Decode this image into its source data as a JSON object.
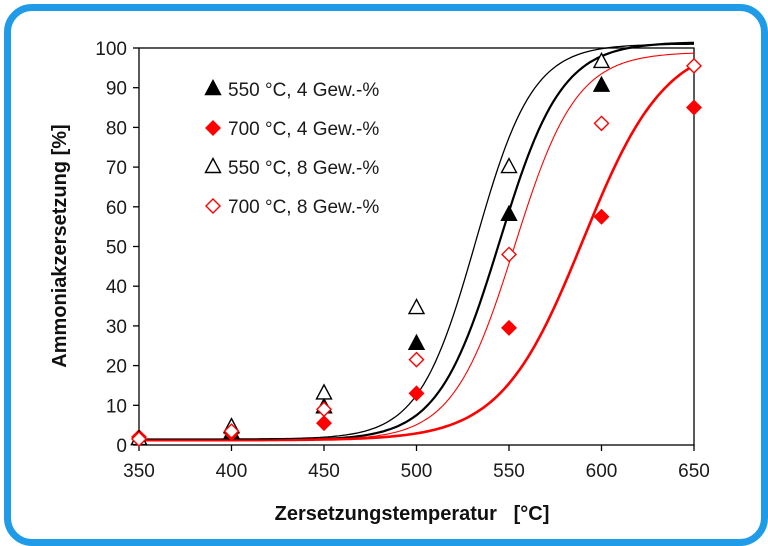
{
  "chart_data": {
    "type": "scatter",
    "xlabel": "Zersetzungstemperatur   [°C]",
    "ylabel": "Ammoniakzersetzung [%]",
    "xlim": [
      350,
      650
    ],
    "ylim": [
      0,
      100
    ],
    "xticks": [
      350,
      400,
      450,
      500,
      550,
      600,
      650
    ],
    "yticks": [
      0,
      10,
      20,
      30,
      40,
      50,
      60,
      70,
      80,
      90,
      100
    ],
    "grid": false,
    "legend_position": "top-left",
    "series": [
      {
        "name": "550 °C, 4 Gew.-%",
        "marker": "triangle-filled",
        "color": "#000000",
        "x": [
          350,
          400,
          450,
          500,
          550,
          600
        ],
        "y": [
          1.5,
          3,
          9.5,
          25.5,
          58,
          90.5
        ],
        "fit": {
          "k": 0.06,
          "mid": 545,
          "min": 1.2,
          "max": 101.5
        }
      },
      {
        "name": "700 °C, 4 Gew.-%",
        "marker": "diamond-filled",
        "color": "#ff0000",
        "x": [
          350,
          400,
          450,
          500,
          550,
          600,
          650
        ],
        "y": [
          2,
          3,
          5.5,
          13,
          29.5,
          57.5,
          85
        ],
        "fit": {
          "k": 0.045,
          "mid": 590,
          "min": 1.2,
          "max": 102
        }
      },
      {
        "name": "550 °C, 8 Gew.-%",
        "marker": "triangle-open",
        "color": "#000000",
        "x": [
          350,
          400,
          450,
          500,
          550,
          600
        ],
        "y": [
          1.5,
          4.5,
          13,
          34.5,
          70,
          96.5
        ],
        "fit": {
          "k": 0.065,
          "mid": 532,
          "min": 1.5,
          "max": 101
        }
      },
      {
        "name": "700 °C, 8 Gew.-%",
        "marker": "diamond-open",
        "color": "#ff0000",
        "x": [
          350,
          400,
          450,
          500,
          550,
          600,
          650
        ],
        "y": [
          1.5,
          3.5,
          9,
          21.5,
          48,
          81,
          95.5
        ],
        "fit": {
          "k": 0.06,
          "mid": 553,
          "min": 1.2,
          "max": 99
        }
      }
    ]
  }
}
